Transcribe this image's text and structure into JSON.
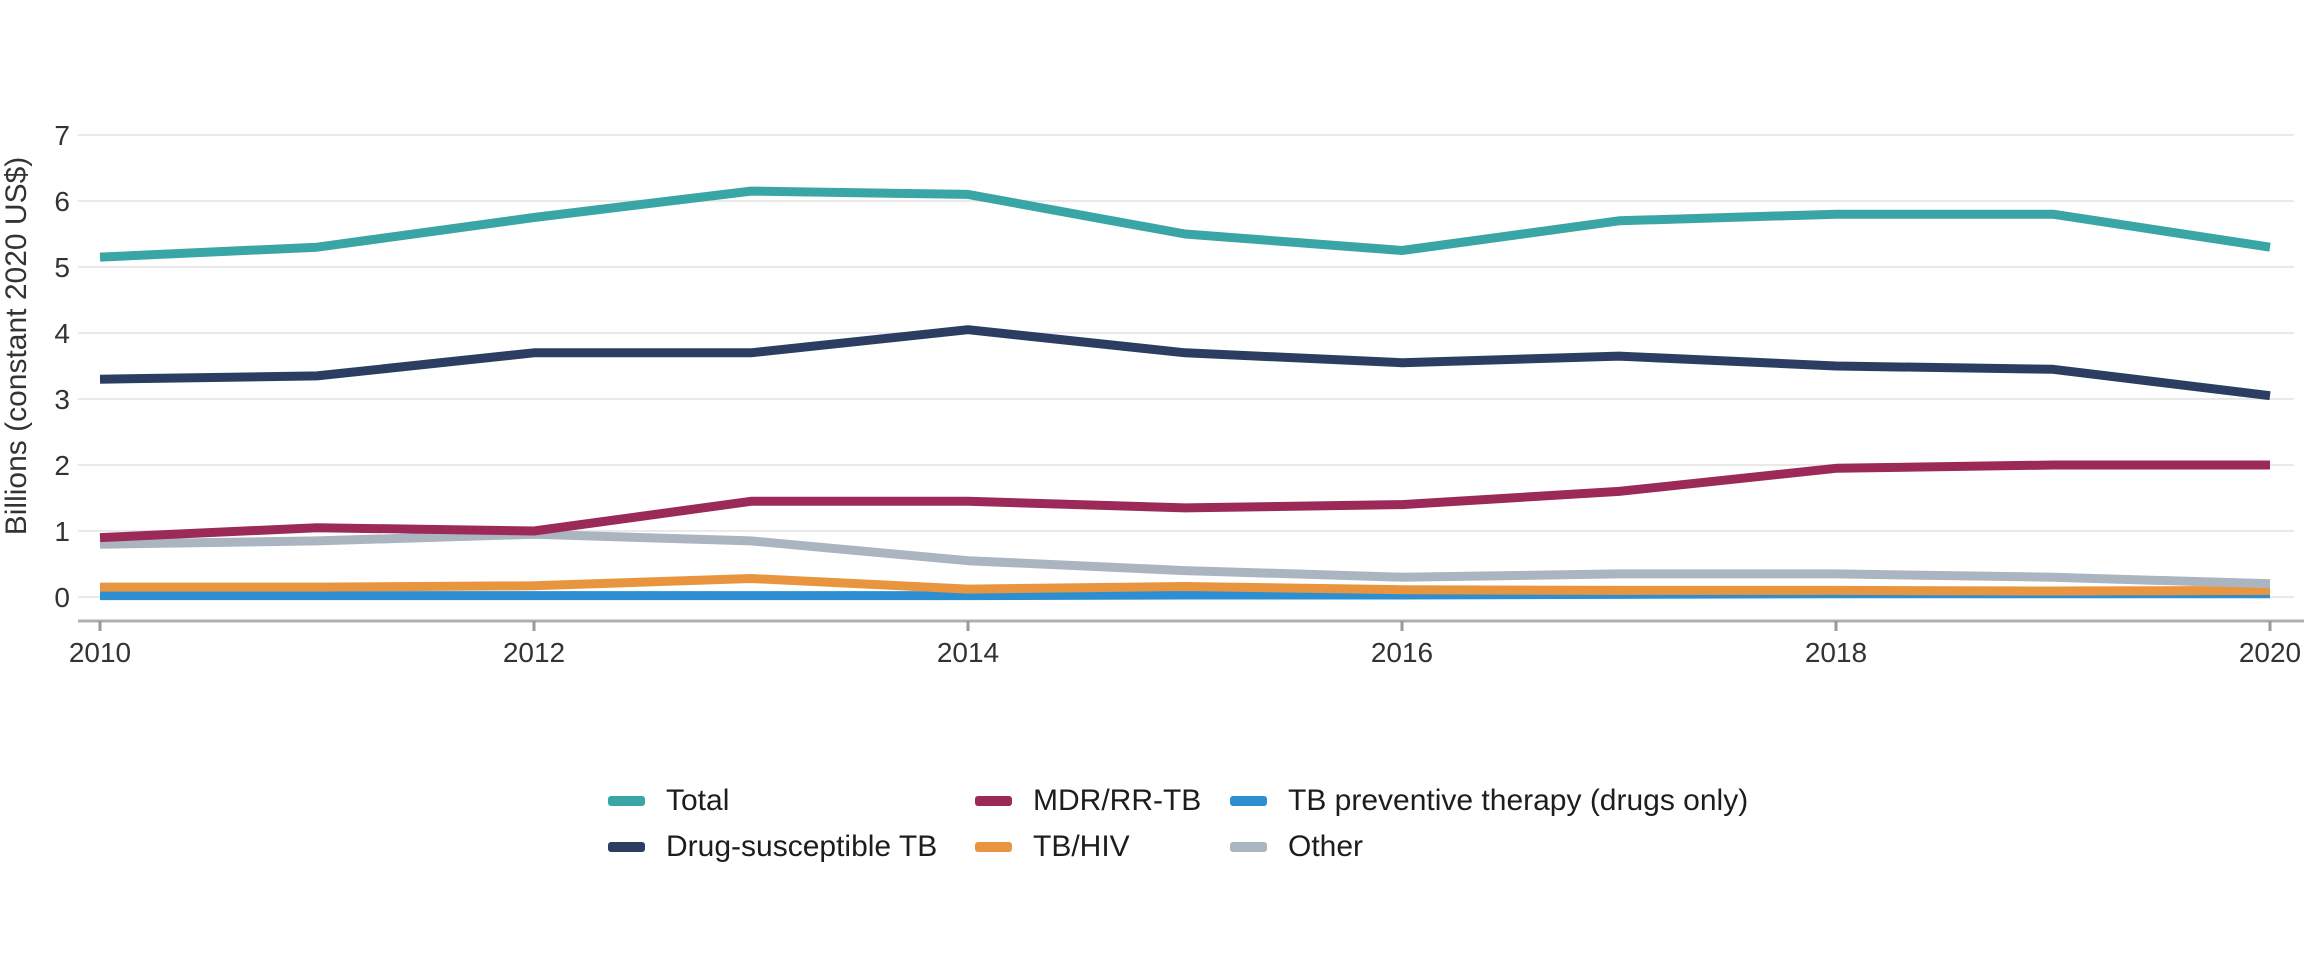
{
  "chart_data": {
    "type": "line",
    "title": "",
    "xlabel": "",
    "ylabel": "Billions (constant 2020 US$)",
    "x": [
      2010,
      2011,
      2012,
      2013,
      2014,
      2015,
      2016,
      2017,
      2018,
      2019,
      2020
    ],
    "x_ticks": [
      2010,
      2012,
      2014,
      2016,
      2018,
      2020
    ],
    "y_ticks": [
      0,
      1,
      2,
      3,
      4,
      5,
      6,
      7
    ],
    "xlim": [
      2010,
      2020
    ],
    "ylim": [
      0,
      7
    ],
    "grid": "horizontal-only",
    "legend_position": "bottom",
    "series": [
      {
        "name": "Total",
        "color": "#3AA5A5",
        "values": [
          5.15,
          5.3,
          5.75,
          6.15,
          6.1,
          5.5,
          5.25,
          5.7,
          5.8,
          5.8,
          5.3
        ]
      },
      {
        "name": "Drug-susceptible TB",
        "color": "#2B3E62",
        "values": [
          3.3,
          3.35,
          3.7,
          3.7,
          4.05,
          3.7,
          3.55,
          3.65,
          3.5,
          3.45,
          3.05
        ]
      },
      {
        "name": "MDR/RR-TB",
        "color": "#9B2A58",
        "values": [
          0.9,
          1.05,
          1.0,
          1.45,
          1.45,
          1.35,
          1.4,
          1.6,
          1.95,
          2.0,
          2.0
        ]
      },
      {
        "name": "TB/HIV",
        "color": "#E9953F",
        "values": [
          0.15,
          0.15,
          0.17,
          0.28,
          0.12,
          0.16,
          0.11,
          0.1,
          0.1,
          0.09,
          0.1
        ]
      },
      {
        "name": "TB preventive therapy (drugs only)",
        "color": "#2D8FD1",
        "values": [
          0.02,
          0.02,
          0.02,
          0.02,
          0.02,
          0.03,
          0.03,
          0.04,
          0.05,
          0.05,
          0.05
        ]
      },
      {
        "name": "Other",
        "color": "#ABB5BF",
        "values": [
          0.8,
          0.85,
          0.95,
          0.85,
          0.55,
          0.4,
          0.3,
          0.35,
          0.35,
          0.3,
          0.2
        ]
      }
    ],
    "draw_order": [
      4,
      3,
      5,
      2,
      1,
      0
    ]
  },
  "legend": {
    "items": [
      {
        "label": "Total",
        "color": "#3AA5A5"
      },
      {
        "label": "MDR/RR-TB",
        "color": "#9B2A58"
      },
      {
        "label": "TB preventive therapy (drugs only)",
        "color": "#2D8FD1"
      },
      {
        "label": "Drug-susceptible TB",
        "color": "#2B3E62"
      },
      {
        "label": "TB/HIV",
        "color": "#E9953F"
      },
      {
        "label": "Other",
        "color": "#ABB5BF"
      }
    ]
  }
}
